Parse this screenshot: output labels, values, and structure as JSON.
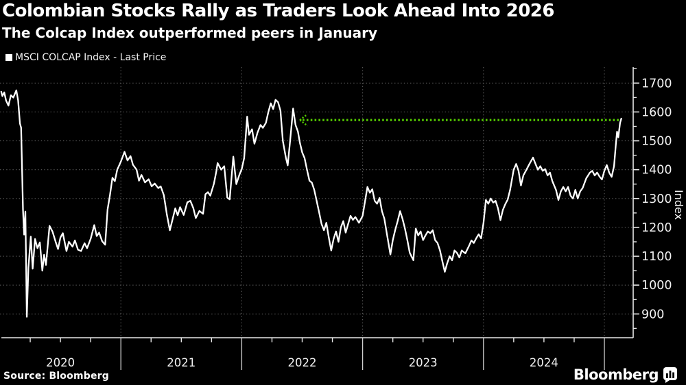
{
  "header": {
    "title": "Colombian Stocks Rally as Traders Look Ahead Into 2026",
    "subtitle": "The Colcap Index outperformed peers in January"
  },
  "legend": {
    "label": "MSCI COLCAP Index - Last Price",
    "marker_color": "#ffffff"
  },
  "footer": {
    "source": "Source:  Bloomberg",
    "brand": "Bloomberg"
  },
  "colors": {
    "background": "#000000",
    "line": "#ffffff",
    "grid": "#5a5a5a",
    "axis": "#e8e8e8",
    "reference_green": "#52c400",
    "tick_text": "#f2f2f2"
  },
  "chart_data": {
    "type": "line",
    "title": "MSCI COLCAP Index - Last Price",
    "xlabel": "",
    "ylabel": "Index",
    "ylim": [
      817,
      1756
    ],
    "xlim_years": [
      2020.0,
      2025.24
    ],
    "grid": "dotted",
    "legend_position": "top-left",
    "y_major_ticks": [
      900,
      1000,
      1100,
      1200,
      1300,
      1400,
      1500,
      1600,
      1700
    ],
    "y_minor_ticks": [
      850,
      950,
      1050,
      1150,
      1250,
      1350,
      1450,
      1550,
      1650,
      1750
    ],
    "x_year_labels": [
      "2020",
      "2021",
      "2022",
      "2023",
      "2024"
    ],
    "x_year_boundaries": [
      2021,
      2022,
      2023,
      2024,
      2025
    ],
    "reference_line": {
      "value": 1572,
      "start_year": 2022.481,
      "end_year": 2025.135,
      "color": "#52c400",
      "style": "dotted, left-pointing arrow at start"
    },
    "series": [
      {
        "name": "MSCI COLCAP Index - Last Price",
        "color": "#ffffff",
        "points": [
          [
            2020.01,
            1670
          ],
          [
            2020.02,
            1655
          ],
          [
            2020.035,
            1668
          ],
          [
            2020.05,
            1640
          ],
          [
            2020.07,
            1622
          ],
          [
            2020.09,
            1658
          ],
          [
            2020.11,
            1650
          ],
          [
            2020.135,
            1675
          ],
          [
            2020.15,
            1640
          ],
          [
            2020.165,
            1560
          ],
          [
            2020.175,
            1545
          ],
          [
            2020.19,
            1262
          ],
          [
            2020.2,
            1175
          ],
          [
            2020.21,
            1255
          ],
          [
            2020.222,
            890
          ],
          [
            2020.235,
            1060
          ],
          [
            2020.255,
            1168
          ],
          [
            2020.27,
            1057
          ],
          [
            2020.29,
            1160
          ],
          [
            2020.31,
            1128
          ],
          [
            2020.33,
            1148
          ],
          [
            2020.35,
            1050
          ],
          [
            2020.365,
            1105
          ],
          [
            2020.38,
            1070
          ],
          [
            2020.41,
            1205
          ],
          [
            2020.435,
            1185
          ],
          [
            2020.46,
            1150
          ],
          [
            2020.48,
            1125
          ],
          [
            2020.5,
            1165
          ],
          [
            2020.52,
            1180
          ],
          [
            2020.55,
            1118
          ],
          [
            2020.57,
            1150
          ],
          [
            2020.6,
            1133
          ],
          [
            2020.62,
            1155
          ],
          [
            2020.645,
            1123
          ],
          [
            2020.67,
            1118
          ],
          [
            2020.7,
            1145
          ],
          [
            2020.72,
            1128
          ],
          [
            2020.75,
            1160
          ],
          [
            2020.78,
            1208
          ],
          [
            2020.8,
            1170
          ],
          [
            2020.82,
            1182
          ],
          [
            2020.845,
            1152
          ],
          [
            2020.87,
            1140
          ],
          [
            2020.89,
            1262
          ],
          [
            2020.91,
            1312
          ],
          [
            2020.93,
            1372
          ],
          [
            2020.95,
            1360
          ],
          [
            2020.97,
            1400
          ],
          [
            2021.0,
            1428
          ],
          [
            2021.03,
            1462
          ],
          [
            2021.055,
            1432
          ],
          [
            2021.08,
            1447
          ],
          [
            2021.1,
            1417
          ],
          [
            2021.13,
            1400
          ],
          [
            2021.15,
            1362
          ],
          [
            2021.17,
            1382
          ],
          [
            2021.2,
            1356
          ],
          [
            2021.23,
            1367
          ],
          [
            2021.255,
            1342
          ],
          [
            2021.28,
            1352
          ],
          [
            2021.31,
            1336
          ],
          [
            2021.33,
            1342
          ],
          [
            2021.355,
            1312
          ],
          [
            2021.38,
            1245
          ],
          [
            2021.405,
            1190
          ],
          [
            2021.43,
            1232
          ],
          [
            2021.45,
            1266
          ],
          [
            2021.47,
            1242
          ],
          [
            2021.49,
            1270
          ],
          [
            2021.52,
            1243
          ],
          [
            2021.55,
            1287
          ],
          [
            2021.575,
            1292
          ],
          [
            2021.6,
            1266
          ],
          [
            2021.62,
            1232
          ],
          [
            2021.65,
            1257
          ],
          [
            2021.68,
            1247
          ],
          [
            2021.7,
            1315
          ],
          [
            2021.72,
            1322
          ],
          [
            2021.74,
            1310
          ],
          [
            2021.77,
            1352
          ],
          [
            2021.79,
            1395
          ],
          [
            2021.8,
            1423
          ],
          [
            2021.83,
            1400
          ],
          [
            2021.855,
            1412
          ],
          [
            2021.88,
            1303
          ],
          [
            2021.9,
            1297
          ],
          [
            2021.93,
            1445
          ],
          [
            2021.955,
            1350
          ],
          [
            2021.98,
            1382
          ],
          [
            2022.0,
            1402
          ],
          [
            2022.02,
            1440
          ],
          [
            2022.045,
            1584
          ],
          [
            2022.06,
            1521
          ],
          [
            2022.085,
            1540
          ],
          [
            2022.105,
            1490
          ],
          [
            2022.13,
            1528
          ],
          [
            2022.155,
            1555
          ],
          [
            2022.175,
            1545
          ],
          [
            2022.2,
            1562
          ],
          [
            2022.22,
            1600
          ],
          [
            2022.24,
            1630
          ],
          [
            2022.26,
            1610
          ],
          [
            2022.28,
            1642
          ],
          [
            2022.3,
            1634
          ],
          [
            2022.32,
            1605
          ],
          [
            2022.34,
            1500
          ],
          [
            2022.365,
            1442
          ],
          [
            2022.38,
            1415
          ],
          [
            2022.4,
            1500
          ],
          [
            2022.425,
            1612
          ],
          [
            2022.445,
            1555
          ],
          [
            2022.465,
            1532
          ],
          [
            2022.48,
            1495
          ],
          [
            2022.5,
            1460
          ],
          [
            2022.52,
            1440
          ],
          [
            2022.54,
            1400
          ],
          [
            2022.56,
            1362
          ],
          [
            2022.58,
            1355
          ],
          [
            2022.6,
            1330
          ],
          [
            2022.62,
            1292
          ],
          [
            2022.64,
            1252
          ],
          [
            2022.66,
            1212
          ],
          [
            2022.68,
            1190
          ],
          [
            2022.7,
            1216
          ],
          [
            2022.72,
            1165
          ],
          [
            2022.74,
            1120
          ],
          [
            2022.76,
            1160
          ],
          [
            2022.78,
            1186
          ],
          [
            2022.8,
            1150
          ],
          [
            2022.82,
            1200
          ],
          [
            2022.84,
            1222
          ],
          [
            2022.86,
            1182
          ],
          [
            2022.88,
            1212
          ],
          [
            2022.9,
            1240
          ],
          [
            2022.92,
            1226
          ],
          [
            2022.94,
            1236
          ],
          [
            2022.97,
            1216
          ],
          [
            2023.0,
            1240
          ],
          [
            2023.04,
            1340
          ],
          [
            2023.06,
            1320
          ],
          [
            2023.08,
            1332
          ],
          [
            2023.1,
            1292
          ],
          [
            2023.12,
            1282
          ],
          [
            2023.14,
            1302
          ],
          [
            2023.16,
            1256
          ],
          [
            2023.18,
            1230
          ],
          [
            2023.2,
            1180
          ],
          [
            2023.23,
            1106
          ],
          [
            2023.25,
            1156
          ],
          [
            2023.27,
            1192
          ],
          [
            2023.29,
            1222
          ],
          [
            2023.31,
            1256
          ],
          [
            2023.33,
            1230
          ],
          [
            2023.35,
            1196
          ],
          [
            2023.37,
            1156
          ],
          [
            2023.39,
            1112
          ],
          [
            2023.42,
            1086
          ],
          [
            2023.44,
            1196
          ],
          [
            2023.46,
            1172
          ],
          [
            2023.48,
            1186
          ],
          [
            2023.5,
            1156
          ],
          [
            2023.52,
            1172
          ],
          [
            2023.54,
            1186
          ],
          [
            2023.56,
            1180
          ],
          [
            2023.58,
            1190
          ],
          [
            2023.6,
            1156
          ],
          [
            2023.62,
            1146
          ],
          [
            2023.64,
            1120
          ],
          [
            2023.66,
            1082
          ],
          [
            2023.68,
            1046
          ],
          [
            2023.7,
            1076
          ],
          [
            2023.72,
            1100
          ],
          [
            2023.74,
            1086
          ],
          [
            2023.76,
            1120
          ],
          [
            2023.78,
            1112
          ],
          [
            2023.8,
            1096
          ],
          [
            2023.82,
            1120
          ],
          [
            2023.85,
            1110
          ],
          [
            2023.88,
            1136
          ],
          [
            2023.9,
            1155
          ],
          [
            2023.92,
            1146
          ],
          [
            2023.94,
            1162
          ],
          [
            2023.96,
            1176
          ],
          [
            2023.98,
            1162
          ],
          [
            2024.0,
            1215
          ],
          [
            2024.02,
            1295
          ],
          [
            2024.04,
            1282
          ],
          [
            2024.06,
            1300
          ],
          [
            2024.08,
            1286
          ],
          [
            2024.1,
            1292
          ],
          [
            2024.12,
            1266
          ],
          [
            2024.14,
            1225
          ],
          [
            2024.16,
            1260
          ],
          [
            2024.18,
            1280
          ],
          [
            2024.2,
            1296
          ],
          [
            2024.22,
            1330
          ],
          [
            2024.25,
            1400
          ],
          [
            2024.27,
            1420
          ],
          [
            2024.29,
            1396
          ],
          [
            2024.31,
            1345
          ],
          [
            2024.33,
            1380
          ],
          [
            2024.35,
            1396
          ],
          [
            2024.38,
            1420
          ],
          [
            2024.41,
            1442
          ],
          [
            2024.43,
            1420
          ],
          [
            2024.45,
            1400
          ],
          [
            2024.47,
            1412
          ],
          [
            2024.49,
            1396
          ],
          [
            2024.51,
            1402
          ],
          [
            2024.53,
            1380
          ],
          [
            2024.55,
            1390
          ],
          [
            2024.57,
            1360
          ],
          [
            2024.6,
            1330
          ],
          [
            2024.62,
            1295
          ],
          [
            2024.64,
            1325
          ],
          [
            2024.66,
            1340
          ],
          [
            2024.68,
            1325
          ],
          [
            2024.7,
            1340
          ],
          [
            2024.72,
            1310
          ],
          [
            2024.74,
            1300
          ],
          [
            2024.76,
            1330
          ],
          [
            2024.78,
            1300
          ],
          [
            2024.8,
            1325
          ],
          [
            2024.82,
            1336
          ],
          [
            2024.85,
            1370
          ],
          [
            2024.88,
            1390
          ],
          [
            2024.9,
            1396
          ],
          [
            2024.92,
            1380
          ],
          [
            2024.94,
            1390
          ],
          [
            2024.96,
            1376
          ],
          [
            2024.98,
            1366
          ],
          [
            2025.0,
            1396
          ],
          [
            2025.02,
            1416
          ],
          [
            2025.04,
            1390
          ],
          [
            2025.06,
            1375
          ],
          [
            2025.08,
            1412
          ],
          [
            2025.095,
            1486
          ],
          [
            2025.105,
            1532
          ],
          [
            2025.115,
            1512
          ],
          [
            2025.13,
            1562
          ],
          [
            2025.14,
            1577
          ]
        ]
      }
    ]
  }
}
